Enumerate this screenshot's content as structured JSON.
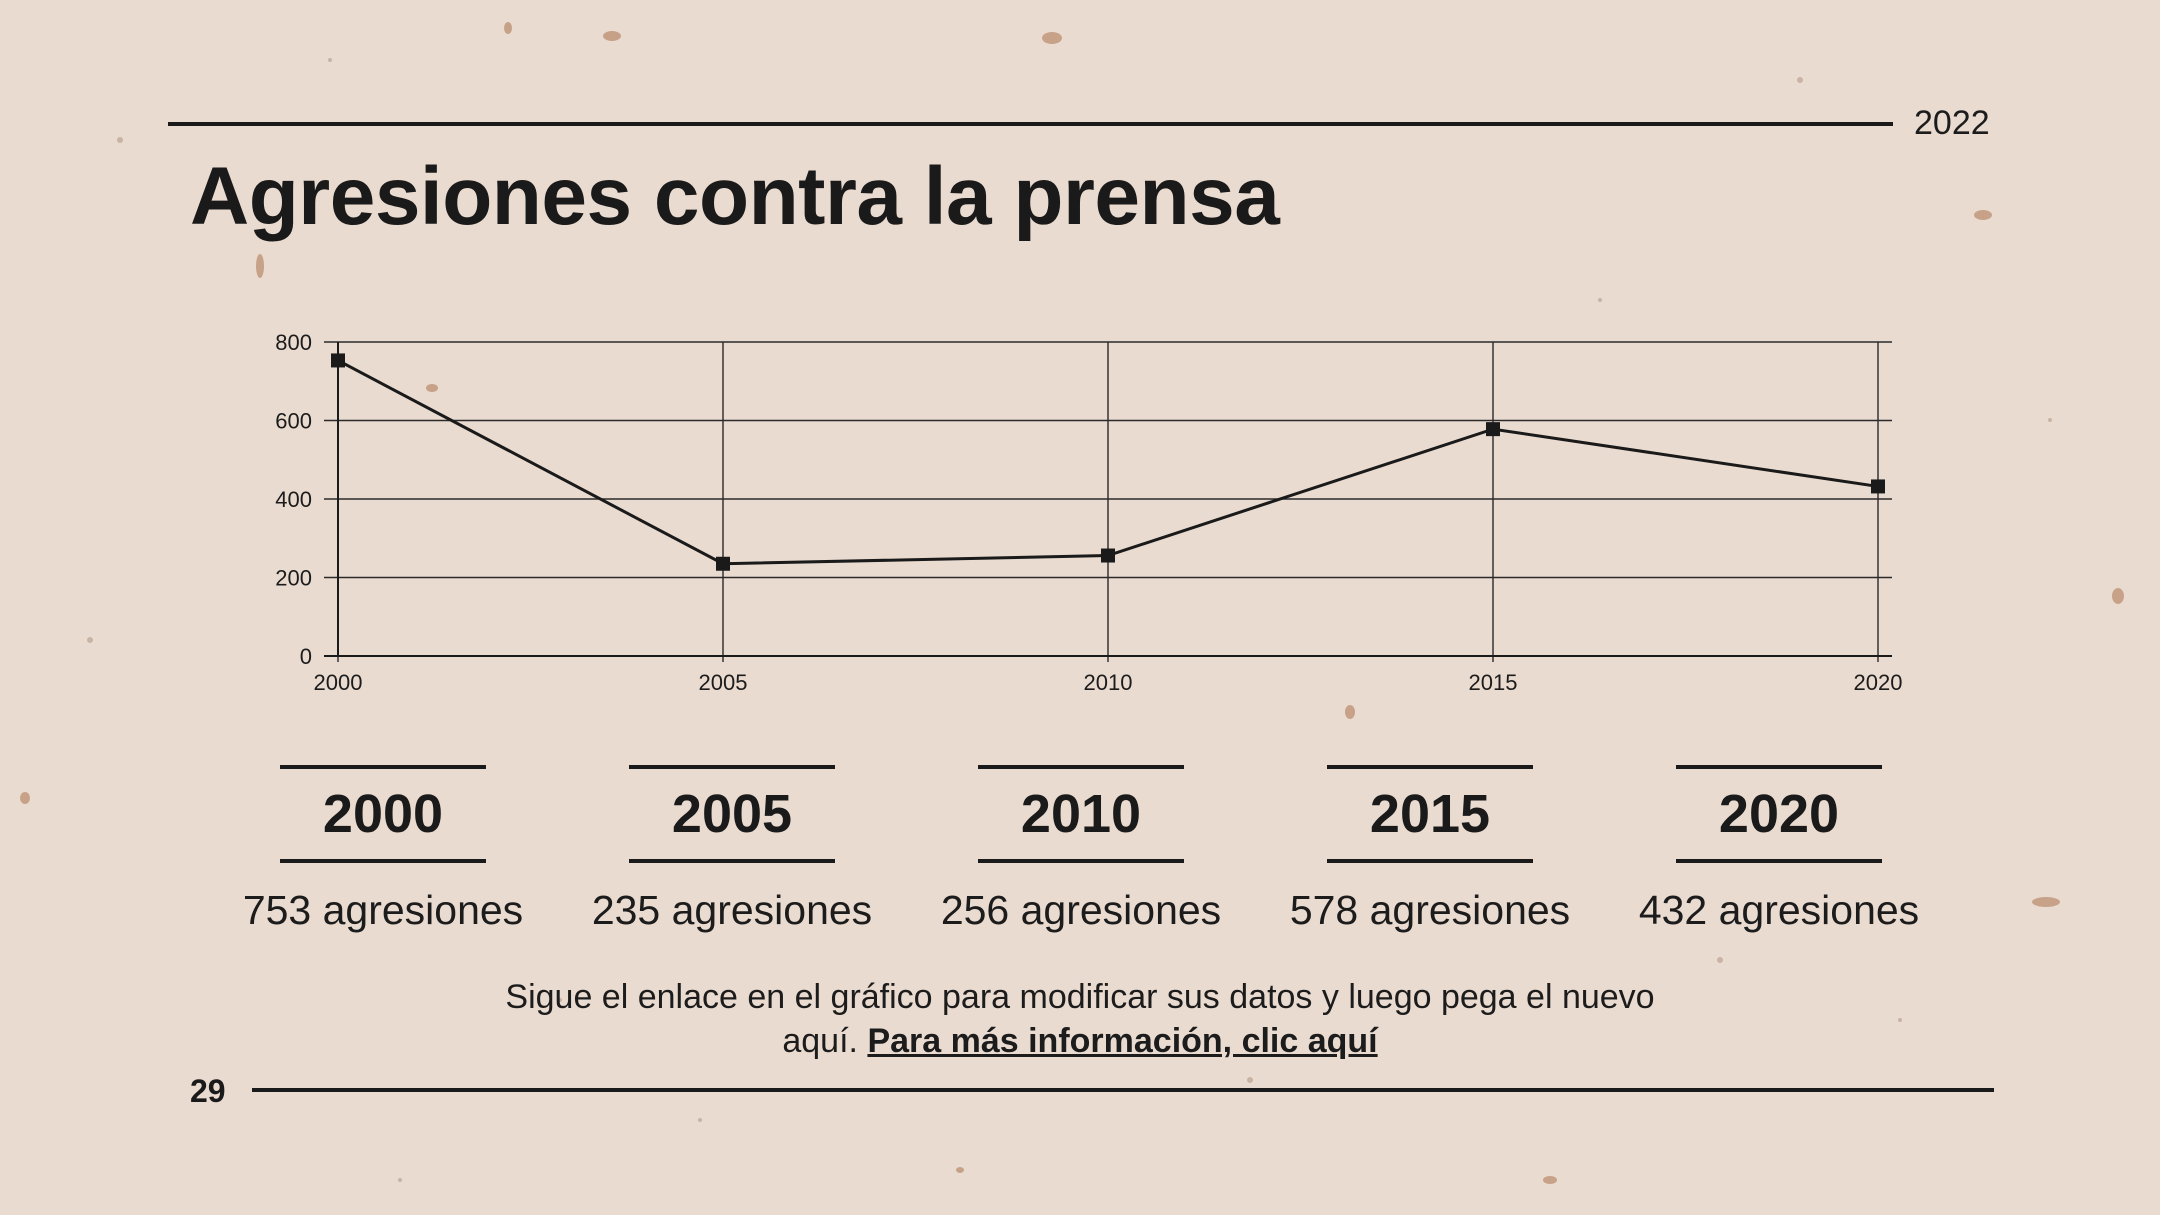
{
  "header": {
    "year": "2022",
    "title": "Agresiones contra la prensa"
  },
  "chart_data": {
    "type": "line",
    "x": [
      2000,
      2005,
      2010,
      2015,
      2020
    ],
    "series": [
      {
        "values": [
          753,
          235,
          256,
          578,
          432
        ]
      }
    ],
    "xticks": [
      "2000",
      "2005",
      "2010",
      "2015",
      "2020"
    ],
    "yticks": [
      "0",
      "200",
      "400",
      "600",
      "800"
    ],
    "ylim": [
      0,
      800
    ],
    "xlim": [
      2000,
      2020
    ],
    "grid": true,
    "marker": "square",
    "line_color": "#1a1a1a",
    "title": "",
    "xlabel": "",
    "ylabel": ""
  },
  "stats": [
    {
      "year": "2000",
      "value": "753 agresiones"
    },
    {
      "year": "2005",
      "value": "235 agresiones"
    },
    {
      "year": "2010",
      "value": "256 agresiones"
    },
    {
      "year": "2015",
      "value": "578 agresiones"
    },
    {
      "year": "2020",
      "value": "432 agresiones"
    }
  ],
  "footnote": {
    "line1": "Sigue el enlace en el gráfico para modificar sus datos y luego pega el nuevo",
    "line2_prefix": "aquí. ",
    "link": "Para más información, clic aquí"
  },
  "page_number": "29",
  "colors": {
    "background": "#eadbd0",
    "ink": "#1a1a1a"
  }
}
